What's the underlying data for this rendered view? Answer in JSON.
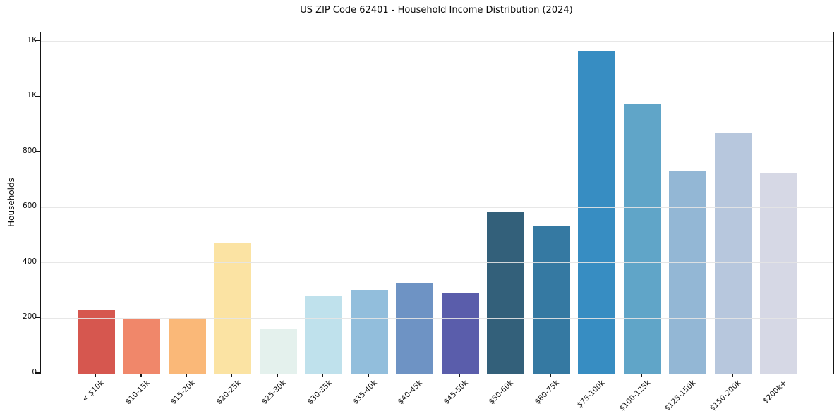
{
  "chart_data": {
    "type": "bar",
    "title": "US ZIP Code 62401 - Household Income Distribution (2024)",
    "xlabel": "",
    "ylabel": "Households",
    "categories": [
      "< $10k",
      "$10-15k",
      "$15-20k",
      "$20-25k",
      "$25-30k",
      "$30-35k",
      "$35-40k",
      "$40-45k",
      "$45-50k",
      "$50-60k",
      "$60-75k",
      "$75-100k",
      "$100-125k",
      "$125-150k",
      "$150-200k",
      "$200k+"
    ],
    "values": [
      232,
      197,
      201,
      472,
      163,
      280,
      303,
      325,
      291,
      583,
      535,
      1165,
      975,
      730,
      870,
      722
    ],
    "bar_colors": [
      "#d6574f",
      "#f0876a",
      "#fab878",
      "#fbe3a3",
      "#e4f1ed",
      "#bfe1ec",
      "#92bedc",
      "#6e93c4",
      "#5a5dab",
      "#33607a",
      "#3579a2",
      "#378dc2",
      "#60a5c8",
      "#93b7d5",
      "#b7c7dd",
      "#d6d8e5"
    ],
    "ylim": [
      0,
      1232
    ],
    "yticks": [
      {
        "value": 0,
        "label": "0"
      },
      {
        "value": 200,
        "label": "200"
      },
      {
        "value": 400,
        "label": "400"
      },
      {
        "value": 600,
        "label": "600"
      },
      {
        "value": 800,
        "label": "800"
      },
      {
        "value": 1000,
        "label": "1K"
      },
      {
        "value": 1200,
        "label": "1K"
      }
    ],
    "grid": "horizontal",
    "legend": "none",
    "background": "#ffffff",
    "spine_color": "#151515"
  }
}
